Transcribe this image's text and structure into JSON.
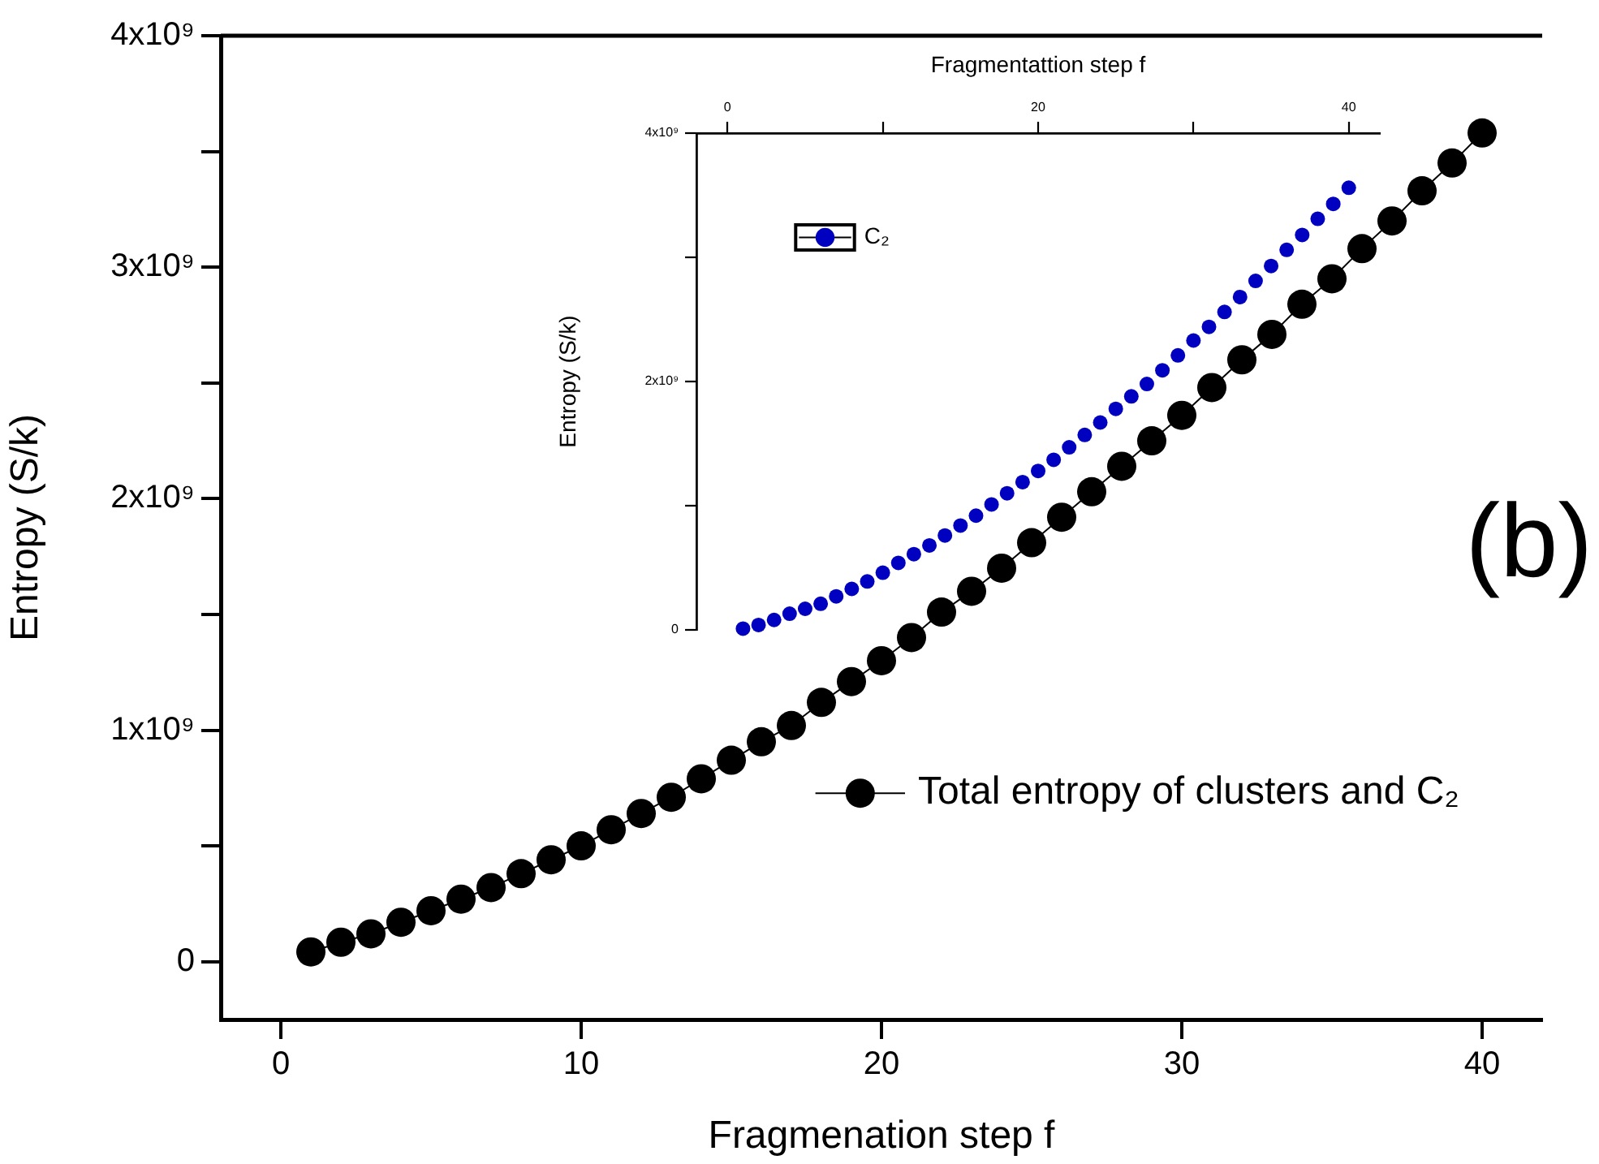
{
  "chart_data": [
    {
      "type": "line",
      "xlabel": "Fragmenation step f",
      "ylabel": "Entropy (S/k)",
      "xlim": [
        -2,
        42
      ],
      "xticks": [
        0,
        10,
        20,
        30,
        40
      ],
      "ylim": [
        -250000000,
        4000000000
      ],
      "yticks": [
        0,
        {
          "value": 500000000,
          "label": null
        },
        {
          "value": 1000000000,
          "label": "1x10⁹"
        },
        {
          "value": 1500000000,
          "label": null
        },
        {
          "value": 2000000000,
          "label": "2x10⁹"
        },
        {
          "value": 2500000000,
          "label": null
        },
        {
          "value": 3000000000,
          "label": "3x10⁹"
        },
        {
          "value": 3500000000,
          "label": null
        },
        {
          "value": 4000000000,
          "label": "4x10⁹"
        }
      ],
      "x": [
        1,
        2,
        3,
        4,
        5,
        6,
        7,
        8,
        9,
        10,
        11,
        12,
        13,
        14,
        15,
        16,
        17,
        18,
        19,
        20,
        21,
        22,
        23,
        24,
        25,
        26,
        27,
        28,
        29,
        30,
        31,
        32,
        33,
        34,
        35,
        36,
        37,
        38,
        39,
        40
      ],
      "series": [
        {
          "name": "Total entropy of clusters and C₂",
          "color": "#000000",
          "values": [
            42000000,
            84000000,
            120000000,
            170000000,
            220000000,
            270000000,
            320000000,
            380000000,
            440000000,
            500000000,
            570000000,
            640000000,
            710000000,
            790000000,
            870000000,
            950000000,
            1020000000,
            1120000000,
            1210000000,
            1300000000,
            1400000000,
            1510000000,
            1600000000,
            1700000000,
            1810000000,
            1920000000,
            2030000000,
            2140000000,
            2250000000,
            2360000000,
            2480000000,
            2600000000,
            2710000000,
            2840000000,
            2950000000,
            3080000000,
            3200000000,
            3330000000,
            3450000000,
            3580000000
          ]
        }
      ],
      "marker": "circle",
      "legend": "bottom right",
      "grid": false,
      "annotations": [
        "(b)"
      ]
    },
    {
      "type": "scatter",
      "xlabel": "Fragmentattion step f",
      "ylabel": "Entropy (S/k)",
      "xlim": [
        -2,
        42
      ],
      "xticks": [
        0,
        {
          "value": 10,
          "label": null
        },
        20,
        {
          "value": 30,
          "label": null
        },
        40
      ],
      "ylim": [
        0,
        4000000000
      ],
      "yticks": [
        0,
        {
          "value": 1000000000,
          "label": null
        },
        {
          "value": 2000000000,
          "label": "2x10⁹"
        },
        {
          "value": 3000000000,
          "label": null
        },
        {
          "value": 4000000000,
          "label": "4x10⁹"
        }
      ],
      "x": [
        1,
        2,
        3,
        4,
        5,
        6,
        7,
        8,
        9,
        10,
        11,
        12,
        13,
        14,
        15,
        16,
        17,
        18,
        19,
        20,
        21,
        22,
        23,
        24,
        25,
        26,
        27,
        28,
        29,
        30,
        31,
        32,
        33,
        34,
        35,
        36,
        37,
        38,
        39,
        40
      ],
      "series": [
        {
          "name": "C₂",
          "color": "#0000c0",
          "values": [
            10000000,
            40000000,
            80000000,
            130000000,
            170000000,
            210000000,
            270000000,
            330000000,
            390000000,
            460000000,
            540000000,
            610000000,
            680000000,
            760000000,
            840000000,
            920000000,
            1010000000,
            1100000000,
            1190000000,
            1280000000,
            1370000000,
            1470000000,
            1570000000,
            1670000000,
            1780000000,
            1880000000,
            1980000000,
            2090000000,
            2210000000,
            2330000000,
            2440000000,
            2560000000,
            2680000000,
            2810000000,
            2930000000,
            3060000000,
            3180000000,
            3310000000,
            3430000000,
            3560000000
          ]
        }
      ],
      "marker": "circle",
      "legend": "top left",
      "grid": false
    }
  ]
}
